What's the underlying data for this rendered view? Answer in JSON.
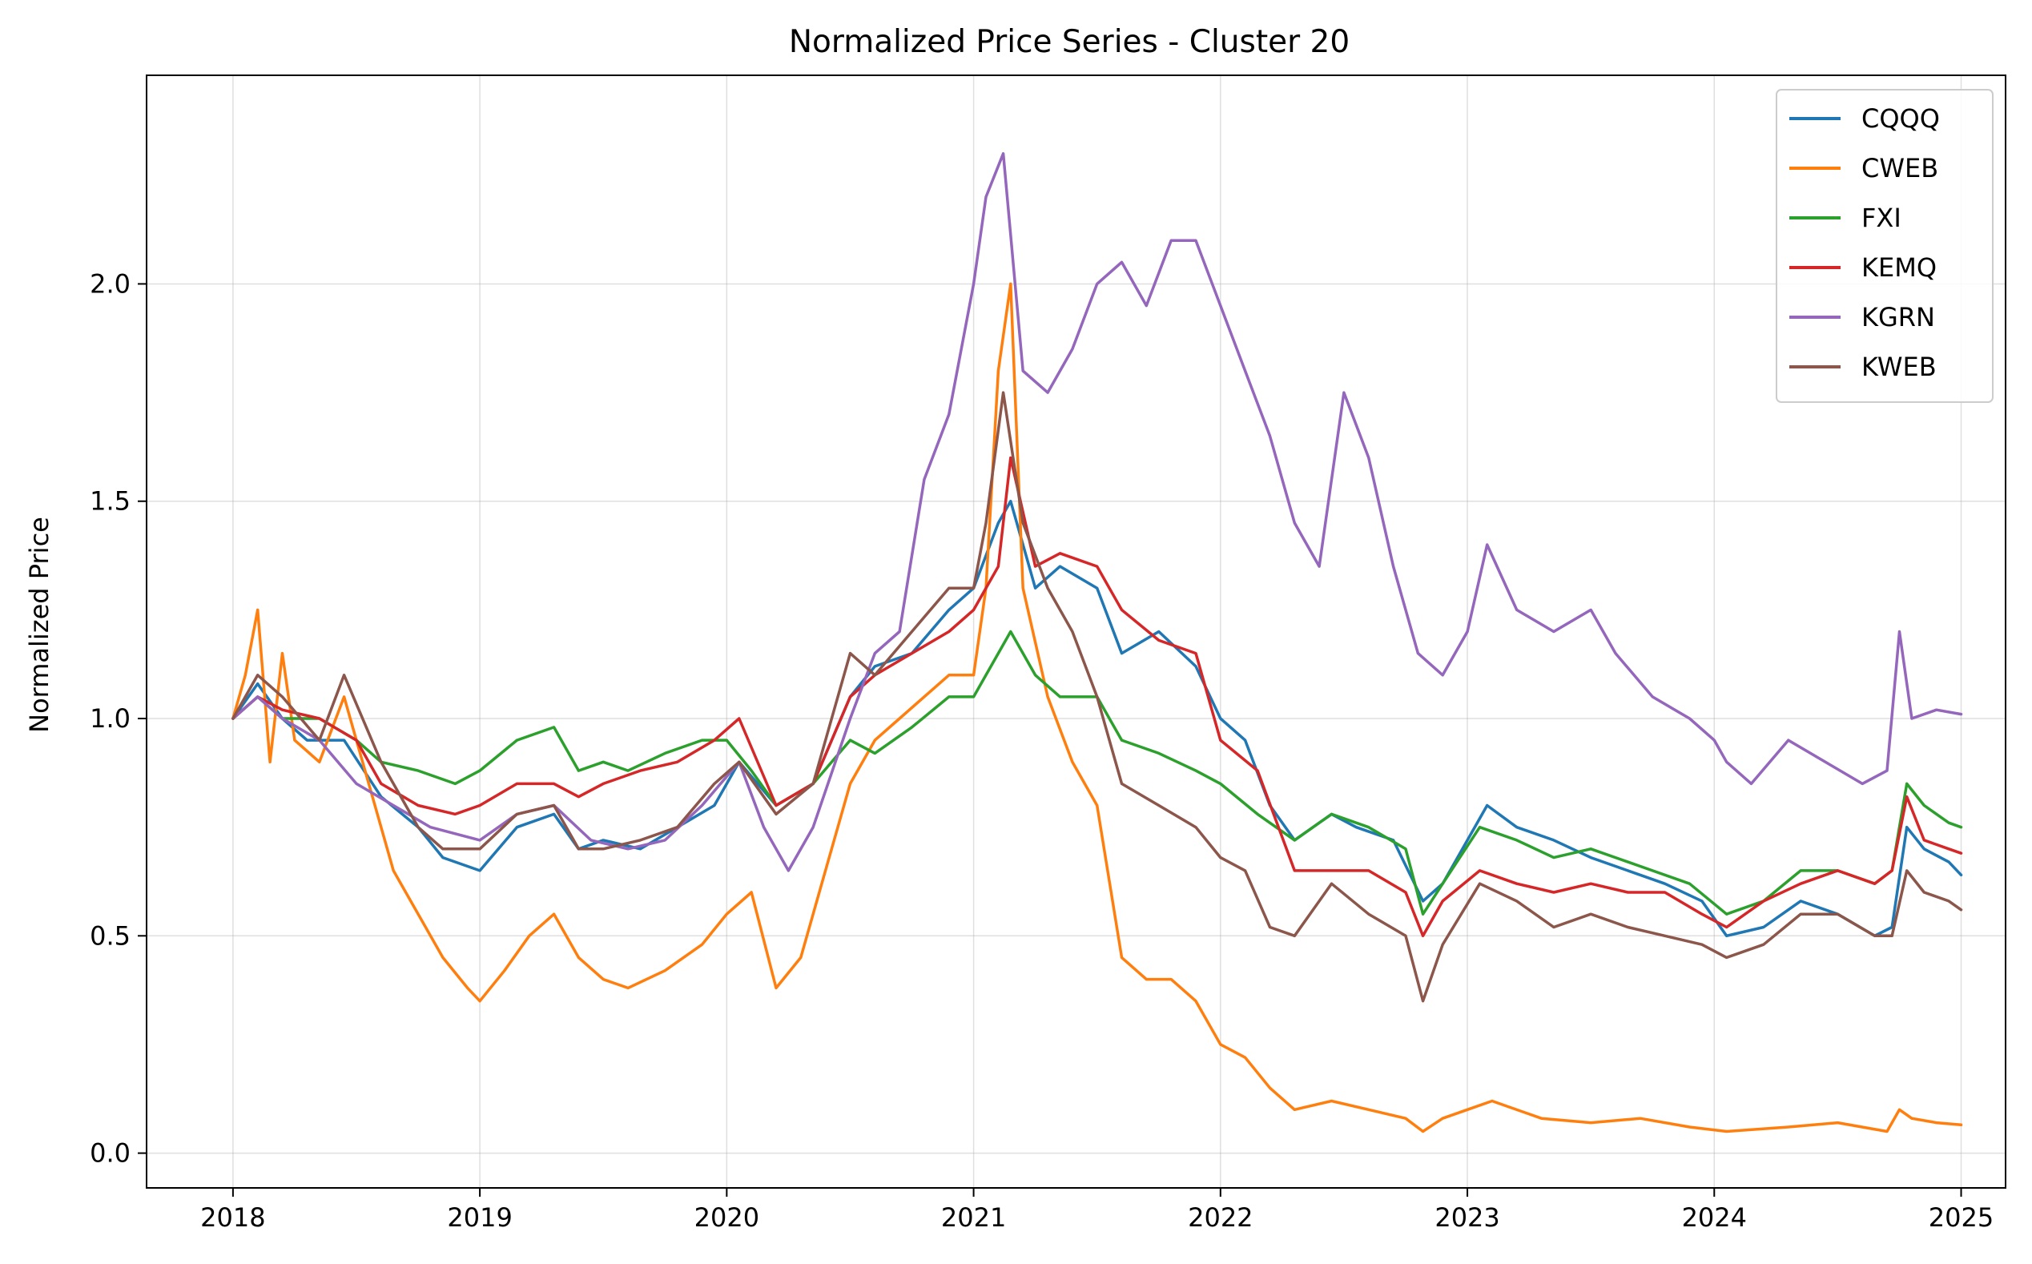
{
  "chart_data": {
    "type": "line",
    "title": "Normalized Price Series - Cluster 20",
    "xlabel": "",
    "ylabel": "Normalized Price",
    "xlim": [
      2017.65,
      2025.18
    ],
    "ylim": [
      -0.08,
      2.48
    ],
    "x_ticks": [
      "2018",
      "2019",
      "2020",
      "2021",
      "2022",
      "2023",
      "2024",
      "2025"
    ],
    "y_ticks": [
      "0.0",
      "0.5",
      "1.0",
      "1.5",
      "2.0"
    ],
    "grid": true,
    "legend_position": "top-right",
    "series": [
      {
        "name": "CQQQ",
        "color": "#1f77b4",
        "x": [
          2018.0,
          2018.1,
          2018.2,
          2018.3,
          2018.45,
          2018.6,
          2018.75,
          2018.85,
          2019.0,
          2019.15,
          2019.3,
          2019.4,
          2019.5,
          2019.65,
          2019.8,
          2019.95,
          2020.05,
          2020.2,
          2020.35,
          2020.5,
          2020.6,
          2020.75,
          2020.9,
          2021.0,
          2021.1,
          2021.15,
          2021.25,
          2021.35,
          2021.5,
          2021.6,
          2021.75,
          2021.9,
          2022.0,
          2022.1,
          2022.2,
          2022.3,
          2022.45,
          2022.55,
          2022.7,
          2022.82,
          2022.9,
          2023.0,
          2023.08,
          2023.2,
          2023.35,
          2023.5,
          2023.65,
          2023.8,
          2023.95,
          2024.05,
          2024.2,
          2024.35,
          2024.5,
          2024.65,
          2024.72,
          2024.78,
          2024.85,
          2024.95,
          2025.0
        ],
        "values": [
          1.0,
          1.08,
          1.0,
          0.95,
          0.95,
          0.82,
          0.75,
          0.68,
          0.65,
          0.75,
          0.78,
          0.7,
          0.72,
          0.7,
          0.75,
          0.8,
          0.9,
          0.8,
          0.85,
          1.05,
          1.12,
          1.15,
          1.25,
          1.3,
          1.45,
          1.5,
          1.3,
          1.35,
          1.3,
          1.15,
          1.2,
          1.12,
          1.0,
          0.95,
          0.8,
          0.72,
          0.78,
          0.75,
          0.72,
          0.58,
          0.62,
          0.72,
          0.8,
          0.75,
          0.72,
          0.68,
          0.65,
          0.62,
          0.58,
          0.5,
          0.52,
          0.58,
          0.55,
          0.5,
          0.52,
          0.75,
          0.7,
          0.67,
          0.64
        ]
      },
      {
        "name": "CWEB",
        "color": "#ff7f0e",
        "x": [
          2018.0,
          2018.05,
          2018.1,
          2018.15,
          2018.2,
          2018.25,
          2018.35,
          2018.45,
          2018.55,
          2018.65,
          2018.75,
          2018.85,
          2018.95,
          2019.0,
          2019.1,
          2019.2,
          2019.3,
          2019.4,
          2019.5,
          2019.6,
          2019.75,
          2019.9,
          2020.0,
          2020.1,
          2020.2,
          2020.3,
          2020.4,
          2020.5,
          2020.6,
          2020.7,
          2020.8,
          2020.9,
          2021.0,
          2021.05,
          2021.1,
          2021.15,
          2021.2,
          2021.3,
          2021.4,
          2021.5,
          2021.6,
          2021.7,
          2021.8,
          2021.9,
          2022.0,
          2022.1,
          2022.2,
          2022.3,
          2022.45,
          2022.6,
          2022.75,
          2022.82,
          2022.9,
          2023.0,
          2023.1,
          2023.3,
          2023.5,
          2023.7,
          2023.9,
          2024.05,
          2024.3,
          2024.5,
          2024.7,
          2024.75,
          2024.8,
          2024.9,
          2025.0
        ],
        "values": [
          1.0,
          1.1,
          1.25,
          0.9,
          1.15,
          0.95,
          0.9,
          1.05,
          0.85,
          0.65,
          0.55,
          0.45,
          0.38,
          0.35,
          0.42,
          0.5,
          0.55,
          0.45,
          0.4,
          0.38,
          0.42,
          0.48,
          0.55,
          0.6,
          0.38,
          0.45,
          0.65,
          0.85,
          0.95,
          1.0,
          1.05,
          1.1,
          1.1,
          1.3,
          1.8,
          2.0,
          1.3,
          1.05,
          0.9,
          0.8,
          0.45,
          0.4,
          0.4,
          0.35,
          0.25,
          0.22,
          0.15,
          0.1,
          0.12,
          0.1,
          0.08,
          0.05,
          0.08,
          0.1,
          0.12,
          0.08,
          0.07,
          0.08,
          0.06,
          0.05,
          0.06,
          0.07,
          0.05,
          0.1,
          0.08,
          0.07,
          0.065
        ]
      },
      {
        "name": "FXI",
        "color": "#2ca02c",
        "x": [
          2018.0,
          2018.1,
          2018.2,
          2018.35,
          2018.5,
          2018.6,
          2018.75,
          2018.9,
          2019.0,
          2019.15,
          2019.3,
          2019.4,
          2019.5,
          2019.6,
          2019.75,
          2019.9,
          2020.0,
          2020.1,
          2020.2,
          2020.35,
          2020.5,
          2020.6,
          2020.75,
          2020.9,
          2021.0,
          2021.1,
          2021.15,
          2021.25,
          2021.35,
          2021.5,
          2021.6,
          2021.75,
          2021.9,
          2022.0,
          2022.15,
          2022.3,
          2022.45,
          2022.6,
          2022.75,
          2022.82,
          2022.9,
          2023.05,
          2023.2,
          2023.35,
          2023.5,
          2023.6,
          2023.75,
          2023.9,
          2024.05,
          2024.2,
          2024.35,
          2024.5,
          2024.65,
          2024.72,
          2024.78,
          2024.85,
          2024.95,
          2025.0
        ],
        "values": [
          1.0,
          1.05,
          1.0,
          1.0,
          0.95,
          0.9,
          0.88,
          0.85,
          0.88,
          0.95,
          0.98,
          0.88,
          0.9,
          0.88,
          0.92,
          0.95,
          0.95,
          0.88,
          0.8,
          0.85,
          0.95,
          0.92,
          0.98,
          1.05,
          1.05,
          1.15,
          1.2,
          1.1,
          1.05,
          1.05,
          0.95,
          0.92,
          0.88,
          0.85,
          0.78,
          0.72,
          0.78,
          0.75,
          0.7,
          0.55,
          0.62,
          0.75,
          0.72,
          0.68,
          0.7,
          0.68,
          0.65,
          0.62,
          0.55,
          0.58,
          0.65,
          0.65,
          0.62,
          0.65,
          0.85,
          0.8,
          0.76,
          0.75
        ]
      },
      {
        "name": "KEMQ",
        "color": "#d62728",
        "x": [
          2018.0,
          2018.1,
          2018.2,
          2018.35,
          2018.5,
          2018.6,
          2018.75,
          2018.9,
          2019.0,
          2019.15,
          2019.3,
          2019.4,
          2019.5,
          2019.65,
          2019.8,
          2019.95,
          2020.05,
          2020.2,
          2020.35,
          2020.5,
          2020.6,
          2020.75,
          2020.9,
          2021.0,
          2021.1,
          2021.15,
          2021.25,
          2021.35,
          2021.5,
          2021.6,
          2021.75,
          2021.9,
          2022.0,
          2022.15,
          2022.3,
          2022.45,
          2022.6,
          2022.75,
          2022.82,
          2022.9,
          2023.05,
          2023.2,
          2023.35,
          2023.5,
          2023.65,
          2023.8,
          2023.95,
          2024.05,
          2024.2,
          2024.35,
          2024.5,
          2024.65,
          2024.72,
          2024.78,
          2024.85,
          2024.95,
          2025.0
        ],
        "values": [
          1.0,
          1.05,
          1.02,
          1.0,
          0.95,
          0.85,
          0.8,
          0.78,
          0.8,
          0.85,
          0.85,
          0.82,
          0.85,
          0.88,
          0.9,
          0.95,
          1.0,
          0.8,
          0.85,
          1.05,
          1.1,
          1.15,
          1.2,
          1.25,
          1.35,
          1.6,
          1.35,
          1.38,
          1.35,
          1.25,
          1.18,
          1.15,
          0.95,
          0.88,
          0.65,
          0.65,
          0.65,
          0.6,
          0.5,
          0.58,
          0.65,
          0.62,
          0.6,
          0.62,
          0.6,
          0.6,
          0.55,
          0.52,
          0.58,
          0.62,
          0.65,
          0.62,
          0.65,
          0.82,
          0.72,
          0.7,
          0.69
        ]
      },
      {
        "name": "KGRN",
        "color": "#9467bd",
        "x": [
          2018.0,
          2018.1,
          2018.2,
          2018.35,
          2018.5,
          2018.65,
          2018.8,
          2019.0,
          2019.15,
          2019.3,
          2019.45,
          2019.6,
          2019.75,
          2019.9,
          2020.05,
          2020.15,
          2020.25,
          2020.35,
          2020.5,
          2020.6,
          2020.7,
          2020.8,
          2020.9,
          2021.0,
          2021.05,
          2021.12,
          2021.2,
          2021.3,
          2021.4,
          2021.5,
          2021.6,
          2021.7,
          2021.8,
          2021.9,
          2022.0,
          2022.1,
          2022.2,
          2022.3,
          2022.4,
          2022.5,
          2022.6,
          2022.7,
          2022.8,
          2022.9,
          2023.0,
          2023.08,
          2023.2,
          2023.35,
          2023.5,
          2023.6,
          2023.75,
          2023.9,
          2024.0,
          2024.05,
          2024.15,
          2024.3,
          2024.45,
          2024.6,
          2024.7,
          2024.75,
          2024.8,
          2024.9,
          2025.0
        ],
        "values": [
          1.0,
          1.05,
          1.0,
          0.95,
          0.85,
          0.8,
          0.75,
          0.72,
          0.78,
          0.8,
          0.72,
          0.7,
          0.72,
          0.8,
          0.9,
          0.75,
          0.65,
          0.75,
          1.0,
          1.15,
          1.2,
          1.55,
          1.7,
          2.0,
          2.2,
          2.3,
          1.8,
          1.75,
          1.85,
          2.0,
          2.05,
          1.95,
          2.1,
          2.1,
          1.95,
          1.8,
          1.65,
          1.45,
          1.35,
          1.75,
          1.6,
          1.35,
          1.15,
          1.1,
          1.2,
          1.4,
          1.25,
          1.2,
          1.25,
          1.15,
          1.05,
          1.0,
          0.95,
          0.9,
          0.85,
          0.95,
          0.9,
          0.85,
          0.88,
          1.2,
          1.0,
          1.02,
          1.01
        ]
      },
      {
        "name": "KWEB",
        "color": "#8c564b",
        "x": [
          2018.0,
          2018.1,
          2018.2,
          2018.35,
          2018.45,
          2018.6,
          2018.75,
          2018.85,
          2019.0,
          2019.15,
          2019.3,
          2019.4,
          2019.5,
          2019.65,
          2019.8,
          2019.95,
          2020.05,
          2020.2,
          2020.35,
          2020.5,
          2020.6,
          2020.75,
          2020.9,
          2021.0,
          2021.05,
          2021.12,
          2021.2,
          2021.3,
          2021.4,
          2021.5,
          2021.6,
          2021.75,
          2021.9,
          2022.0,
          2022.1,
          2022.2,
          2022.3,
          2022.45,
          2022.6,
          2022.75,
          2022.82,
          2022.9,
          2023.05,
          2023.2,
          2023.35,
          2023.5,
          2023.65,
          2023.8,
          2023.95,
          2024.05,
          2024.2,
          2024.35,
          2024.5,
          2024.65,
          2024.72,
          2024.78,
          2024.85,
          2024.95,
          2025.0
        ],
        "values": [
          1.0,
          1.1,
          1.05,
          0.95,
          1.1,
          0.9,
          0.75,
          0.7,
          0.7,
          0.78,
          0.8,
          0.7,
          0.7,
          0.72,
          0.75,
          0.85,
          0.9,
          0.78,
          0.85,
          1.15,
          1.1,
          1.2,
          1.3,
          1.3,
          1.45,
          1.75,
          1.45,
          1.3,
          1.2,
          1.05,
          0.85,
          0.8,
          0.75,
          0.68,
          0.65,
          0.52,
          0.5,
          0.62,
          0.55,
          0.5,
          0.35,
          0.48,
          0.62,
          0.58,
          0.52,
          0.55,
          0.52,
          0.5,
          0.48,
          0.45,
          0.48,
          0.55,
          0.55,
          0.5,
          0.5,
          0.65,
          0.6,
          0.58,
          0.56
        ]
      }
    ]
  }
}
